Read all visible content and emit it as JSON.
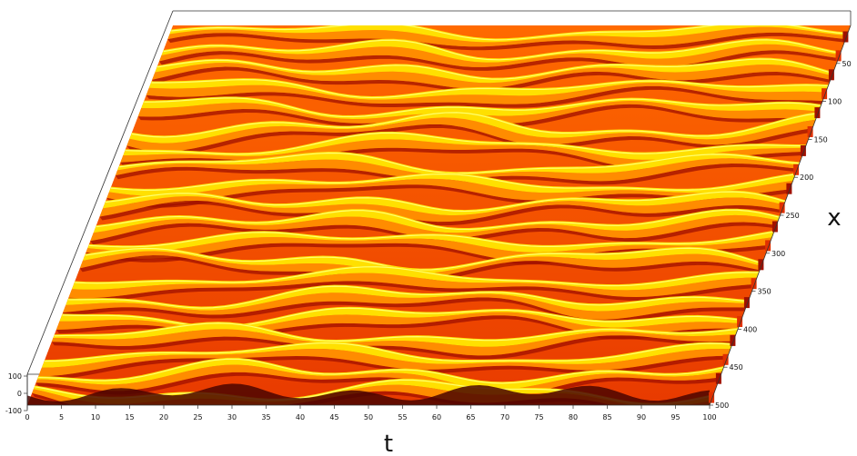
{
  "chart_data": {
    "type": "surface-3d",
    "description_colormap": "hot",
    "colors": {
      "dark": "#3a0000",
      "deep_red": "#a01000",
      "red": "#e03000",
      "orange": "#ff8c00",
      "yellow": "#ffe000",
      "pale_yellow": "#ffff70"
    },
    "xlabel": "t",
    "ylabel": "x",
    "zlabel": "",
    "t_range": [
      0,
      100
    ],
    "x_range": [
      0,
      500
    ],
    "z_range": [
      -100,
      100
    ],
    "t_ticks": [
      "0",
      "5",
      "10",
      "15",
      "20",
      "25",
      "30",
      "35",
      "40",
      "45",
      "50",
      "55",
      "60",
      "65",
      "70",
      "75",
      "80",
      "85",
      "90",
      "95",
      "100"
    ],
    "x_ticks": [
      "50",
      "100",
      "150",
      "200",
      "250",
      "300",
      "350",
      "400",
      "450",
      "500"
    ],
    "z_ticks": [
      "100",
      "0",
      "-100"
    ],
    "stripe_count": 20,
    "grid": false
  }
}
